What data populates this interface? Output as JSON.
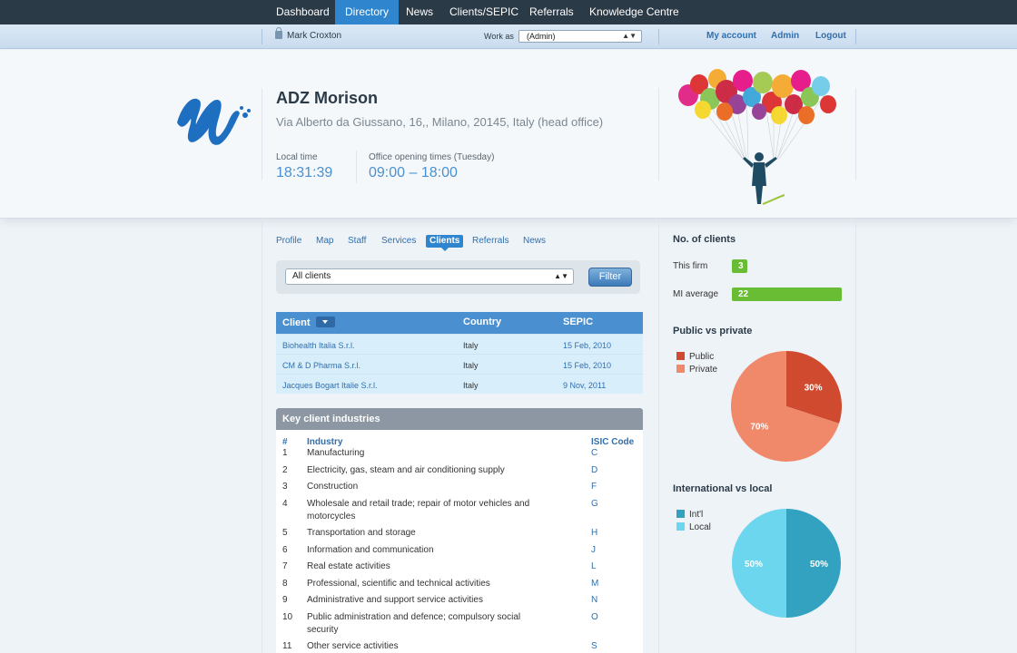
{
  "topnav": {
    "items": [
      "Dashboard",
      "Directory",
      "News",
      "Clients/SEPIC",
      "Referrals",
      "Knowledge Centre"
    ],
    "active": 1
  },
  "subbar": {
    "user": "Mark Croxton",
    "work_as_label": "Work as",
    "work_as_value": "(Admin)",
    "links": [
      "My account",
      "Admin",
      "Logout"
    ]
  },
  "firm": {
    "name": "ADZ Morison",
    "address": "Via Alberto da Giussano, 16,, Milano, 20145, Italy (head office)",
    "local_time_label": "Local time",
    "local_time": "18:31:39",
    "opening_label": "Office opening times (Tuesday)",
    "opening": "09:00 – 18:00"
  },
  "tabs": [
    "Profile",
    "Map",
    "Staff",
    "Services",
    "Clients",
    "Referrals",
    "News"
  ],
  "active_tab": 4,
  "filter": {
    "select_value": "All clients",
    "button": "Filter"
  },
  "clients_table": {
    "headers": [
      "Client",
      "Country",
      "SEPIC"
    ],
    "rows": [
      {
        "client": "Biohealth Italia S.r.l.",
        "country": "Italy",
        "sepic": "15 Feb, 2010"
      },
      {
        "client": "CM & D Pharma S.r.l.",
        "country": "Italy",
        "sepic": "15 Feb, 2010"
      },
      {
        "client": "Jacques Bogart Italie S.r.l.",
        "country": "Italy",
        "sepic": "9 Nov, 2011"
      }
    ]
  },
  "industries": {
    "title": "Key client industries",
    "headers": [
      "#",
      "Industry",
      "ISIC Code"
    ],
    "rows": [
      {
        "n": "1",
        "lines": [
          "Manufacturing"
        ],
        "code": "C"
      },
      {
        "n": "2",
        "lines": [
          "Electricity, gas, steam and air conditioning supply"
        ],
        "code": "D"
      },
      {
        "n": "3",
        "lines": [
          "Construction"
        ],
        "code": "F"
      },
      {
        "n": "4",
        "lines": [
          "Wholesale and retail trade; repair of motor vehicles and",
          "motorcycles"
        ],
        "code": "G"
      },
      {
        "n": "5",
        "lines": [
          "Transportation and storage"
        ],
        "code": "H"
      },
      {
        "n": "6",
        "lines": [
          "Information and communication"
        ],
        "code": "J"
      },
      {
        "n": "7",
        "lines": [
          "Real estate activities"
        ],
        "code": "L"
      },
      {
        "n": "8",
        "lines": [
          "Professional, scientific and technical activities"
        ],
        "code": "M"
      },
      {
        "n": "9",
        "lines": [
          "Administrative and support service activities"
        ],
        "code": "N"
      },
      {
        "n": "10",
        "lines": [
          "Public administration and defence; compulsory social",
          "security"
        ],
        "code": "O"
      },
      {
        "n": "11",
        "lines": [
          "Other service activities"
        ],
        "code": "S"
      }
    ]
  },
  "stats": {
    "clients_title": "No. of clients",
    "this_firm_label": "This firm",
    "this_firm_value": 3,
    "mi_average_label": "MI average",
    "mi_average_value": 22
  },
  "chart_data": [
    {
      "type": "pie",
      "title": "Public vs private",
      "categories": [
        "Public",
        "Private"
      ],
      "values": [
        30,
        70
      ],
      "labels": [
        "30%",
        "70%"
      ],
      "colors": [
        "#cf4a2e",
        "#f0896a"
      ]
    },
    {
      "type": "pie",
      "title": "International vs local",
      "categories": [
        "Int'l",
        "Local"
      ],
      "values": [
        50,
        50
      ],
      "labels": [
        "50%",
        "50%"
      ],
      "colors": [
        "#33a2c0",
        "#6cd6ef"
      ]
    }
  ]
}
